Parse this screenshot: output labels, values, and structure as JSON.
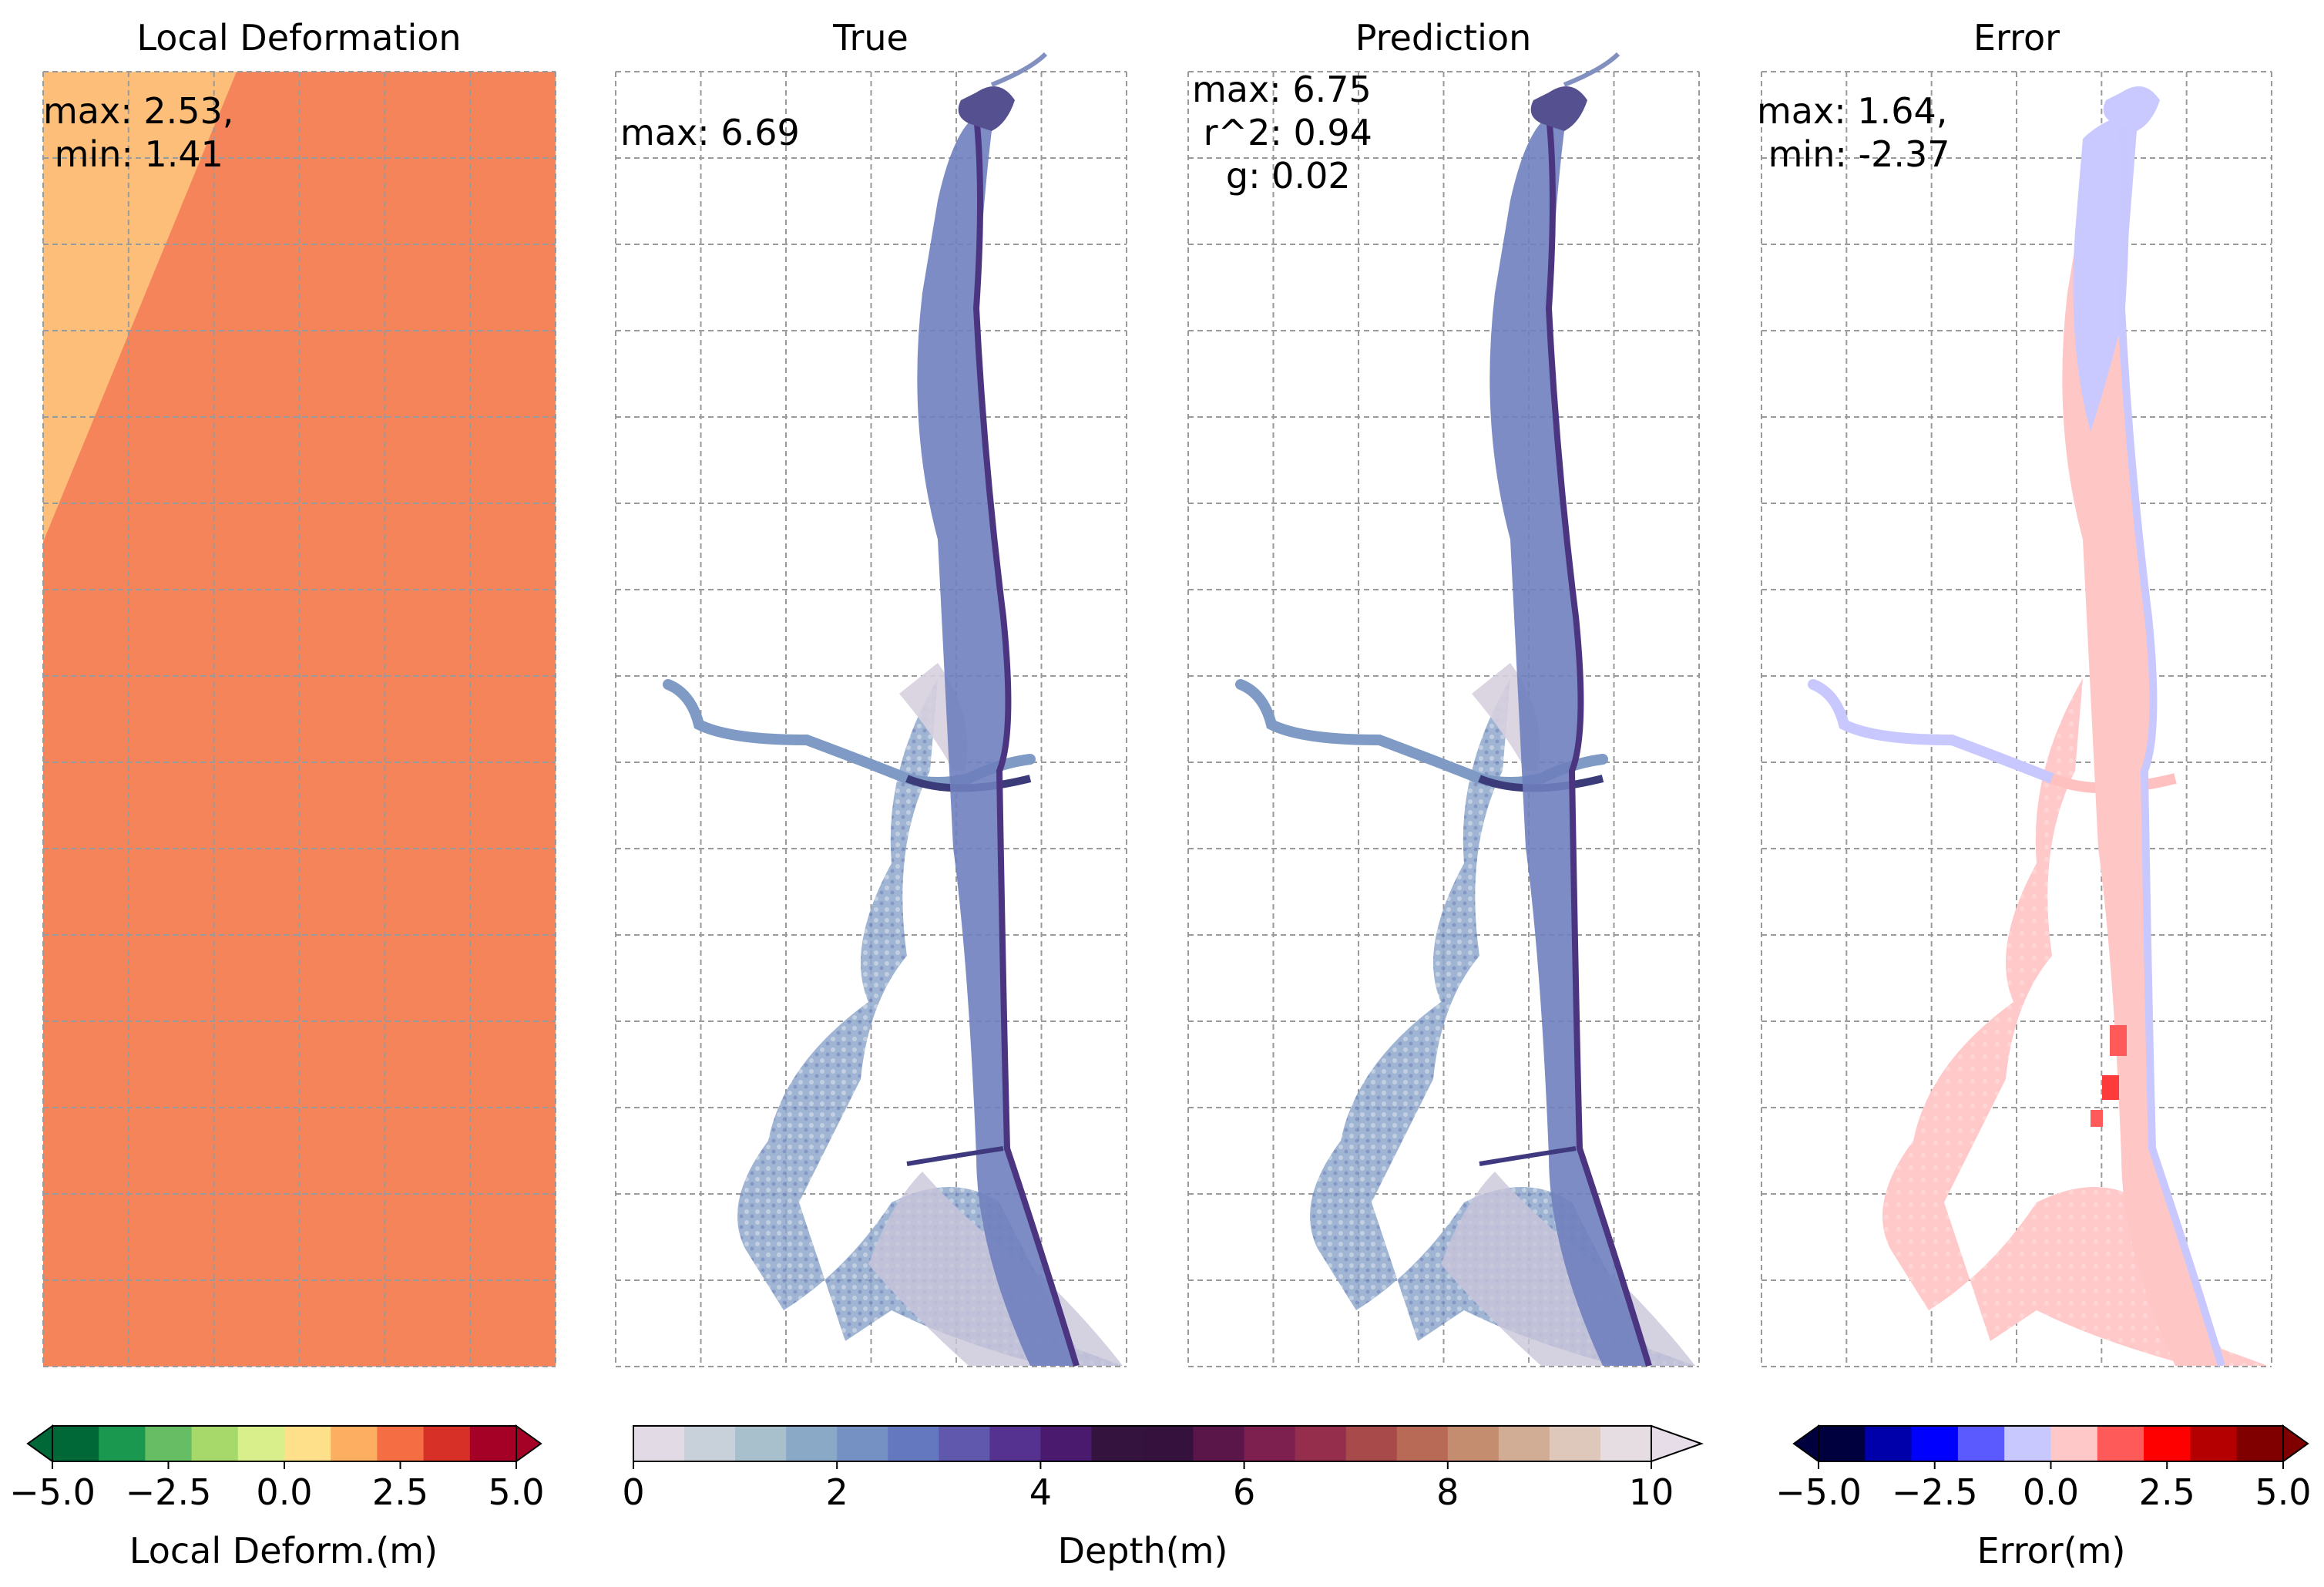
{
  "figure": {
    "panels": [
      {
        "id": "local",
        "title": "Local Deformation",
        "annotation": [
          "max: 2.53,",
          " min: 1.41"
        ]
      },
      {
        "id": "true",
        "title": "True",
        "annotation": [
          "max: 6.69"
        ]
      },
      {
        "id": "pred",
        "title": "Prediction",
        "annotation": [
          "max: 6.75",
          " r^2: 0.94",
          "   g: 0.02"
        ]
      },
      {
        "id": "error",
        "title": "Error",
        "annotation": [
          "max: 1.64,",
          " min: -2.37"
        ]
      }
    ],
    "grid": {
      "style": "dashed",
      "color": "#9a9a9a"
    }
  },
  "chart_data": [
    {
      "type": "heatmap",
      "title": "Local Deformation",
      "stats": {
        "max": 2.53,
        "min": 1.41
      },
      "field_description_values": {
        "low_band": 1.41,
        "high_band": 2.53
      },
      "band_colors": {
        "low": "#fcbe78",
        "high": "#f5845a"
      }
    },
    {
      "type": "heatmap",
      "title": "True",
      "stats": {
        "max": 6.69
      },
      "colormap": "Depth(m)"
    },
    {
      "type": "heatmap",
      "title": "Prediction",
      "stats": {
        "max": 6.75,
        "r2": 0.94,
        "g": 0.02
      },
      "colormap": "Depth(m)"
    },
    {
      "type": "heatmap",
      "title": "Error",
      "stats": {
        "max": 1.64,
        "min": -2.37
      },
      "colormap": "Error(m)"
    }
  ],
  "colorbars": [
    {
      "id": "deform",
      "label": "Local Deform.(m)",
      "min": -5.0,
      "max": 5.0,
      "ticks": [
        -5.0,
        -2.5,
        0.0,
        2.5,
        5.0
      ],
      "tick_labels": [
        "−5.0",
        "−2.5",
        "0.0",
        "2.5",
        "5.0"
      ],
      "extend": "both",
      "colors": [
        "#006837",
        "#1a9850",
        "#66bd63",
        "#a6d96a",
        "#d9ef8b",
        "#fee08b",
        "#fdae61",
        "#f46d43",
        "#d73027",
        "#a50026"
      ]
    },
    {
      "id": "depth",
      "label": "Depth(m)",
      "min": 0,
      "max": 10,
      "ticks": [
        0,
        2,
        4,
        6,
        8,
        10
      ],
      "tick_labels": [
        "0",
        "2",
        "4",
        "6",
        "8",
        "10"
      ],
      "extend": "max",
      "colors": [
        "#e2dae4",
        "#c8d1d9",
        "#a8bfcc",
        "#8aa9c6",
        "#7591c3",
        "#6478bf",
        "#5f58ad",
        "#55328f",
        "#4a1a6e",
        "#34143f",
        "#35123d",
        "#5a1649",
        "#7d1f4f",
        "#952e4d",
        "#a84a4a",
        "#b86a57",
        "#c48d70",
        "#d2ad95",
        "#ddc8bb",
        "#e6dde3"
      ],
      "extend_color": "#e6dde8"
    },
    {
      "id": "error",
      "label": "Error(m)",
      "min": -5.0,
      "max": 5.0,
      "ticks": [
        -5.0,
        -2.5,
        0.0,
        2.5,
        5.0
      ],
      "tick_labels": [
        "−5.0",
        "−2.5",
        "0.0",
        "2.5",
        "5.0"
      ],
      "extend": "both",
      "colors": [
        "#00003f",
        "#0000aa",
        "#0000ff",
        "#5a5aff",
        "#c8c8ff",
        "#ffc8c8",
        "#ff5a5a",
        "#ff0000",
        "#b40000",
        "#800000"
      ]
    }
  ]
}
